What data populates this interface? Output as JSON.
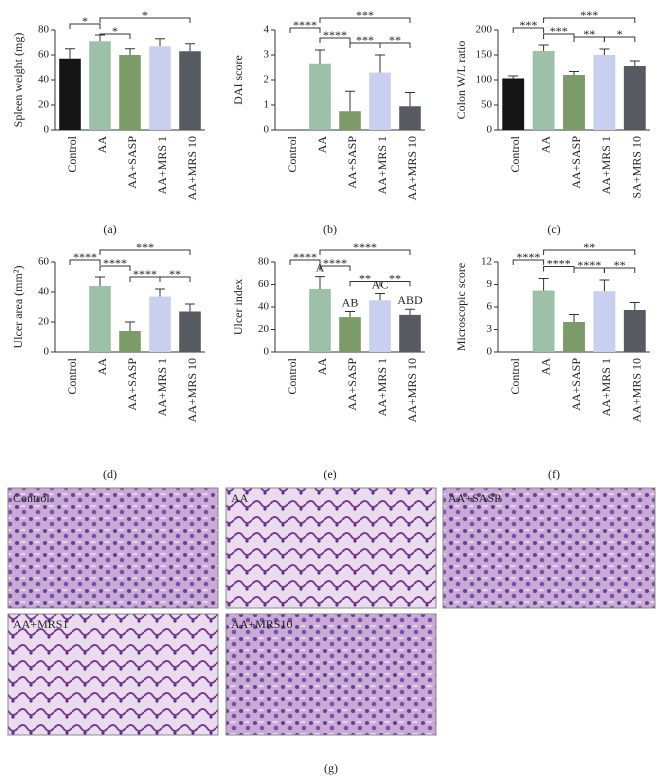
{
  "chart_data": [
    {
      "type": "bar",
      "y_label": "Spleen weight (mg)",
      "caption": "(a)",
      "categories": [
        "Control",
        "AA",
        "AA+SASP",
        "AA+MRS 1",
        "AA+MRS 10"
      ],
      "colors": [
        "#151515",
        "#9dc0a8",
        "#7b9b68",
        "#c9d0ef",
        "#575a60"
      ],
      "values": [
        57,
        71,
        60,
        67,
        63
      ],
      "errors": [
        8,
        5,
        5,
        6,
        6
      ],
      "ylim": [
        0,
        80
      ],
      "yticks": [
        0,
        20,
        40,
        60,
        80
      ],
      "brackets": [
        {
          "label": "*",
          "from": 0,
          "to": 1
        },
        {
          "label": "*",
          "from": 1,
          "to": 2
        },
        {
          "label": "*",
          "from": 1,
          "to": 4
        }
      ]
    },
    {
      "type": "bar",
      "y_label": "DAI score",
      "caption": "(b)",
      "categories": [
        "Control",
        "AA",
        "AA+SASP",
        "AA+MRS 1",
        "AA+MRS 10"
      ],
      "colors": [
        "#151515",
        "#9dc0a8",
        "#7b9b68",
        "#c9d0ef",
        "#575a60"
      ],
      "values": [
        0,
        2.65,
        0.75,
        2.3,
        0.95
      ],
      "errors": [
        0,
        0.55,
        0.8,
        0.7,
        0.55
      ],
      "ylim": [
        0,
        4
      ],
      "yticks": [
        0,
        1,
        2,
        3,
        4
      ],
      "brackets": [
        {
          "label": "****",
          "from": 0,
          "to": 1
        },
        {
          "label": "****",
          "from": 1,
          "to": 2
        },
        {
          "label": "***",
          "from": 1,
          "to": 4
        },
        {
          "label": "***",
          "from": 2,
          "to": 3
        },
        {
          "label": "**",
          "from": 3,
          "to": 4
        }
      ]
    },
    {
      "type": "bar",
      "y_label": "Colon W/L ratio",
      "caption": "(c)",
      "categories": [
        "Control",
        "AA",
        "AA+SASP",
        "AA+MRS 1",
        "SA+MRS 10"
      ],
      "colors": [
        "#151515",
        "#9dc0a8",
        "#7b9b68",
        "#c9d0ef",
        "#575a60"
      ],
      "values": [
        103,
        158,
        110,
        150,
        128
      ],
      "errors": [
        5,
        12,
        7,
        12,
        10
      ],
      "ylim": [
        0,
        200
      ],
      "yticks": [
        0,
        50,
        100,
        150,
        200
      ],
      "brackets": [
        {
          "label": "***",
          "from": 0,
          "to": 1
        },
        {
          "label": "***",
          "from": 1,
          "to": 2
        },
        {
          "label": "***",
          "from": 1,
          "to": 4
        },
        {
          "label": "**",
          "from": 2,
          "to": 3
        },
        {
          "label": "*",
          "from": 3,
          "to": 4
        }
      ]
    },
    {
      "type": "bar",
      "y_label": "Ulcer area (mm²)",
      "caption": "(d)",
      "categories": [
        "Control",
        "AA",
        "AA+SASP",
        "AA+MRS 1",
        "AA+MRS 10"
      ],
      "colors": [
        "#151515",
        "#9dc0a8",
        "#7b9b68",
        "#c9d0ef",
        "#575a60"
      ],
      "values": [
        0,
        44,
        14,
        37,
        27
      ],
      "errors": [
        0,
        6,
        6,
        5,
        5
      ],
      "ylim": [
        0,
        60
      ],
      "yticks": [
        0,
        20,
        40,
        60
      ],
      "brackets": [
        {
          "label": "****",
          "from": 0,
          "to": 1
        },
        {
          "label": "****",
          "from": 1,
          "to": 2
        },
        {
          "label": "***",
          "from": 1,
          "to": 4
        },
        {
          "label": "****",
          "from": 2,
          "to": 3
        },
        {
          "label": "**",
          "from": 3,
          "to": 4
        }
      ]
    },
    {
      "type": "bar",
      "y_label": "Ulcer index",
      "caption": "(e)",
      "categories": [
        "Control",
        "AA",
        "AA+SASP",
        "AA+MRS 1",
        "AA+MRS 10"
      ],
      "colors": [
        "#151515",
        "#9dc0a8",
        "#7b9b68",
        "#c9d0ef",
        "#575a60"
      ],
      "values": [
        0,
        56,
        31,
        46,
        33
      ],
      "errors": [
        0,
        11,
        5,
        6,
        5
      ],
      "letters": [
        null,
        "A",
        "AB",
        "AC",
        "ABD"
      ],
      "ylim": [
        0,
        80
      ],
      "yticks": [
        0,
        20,
        40,
        60,
        80
      ],
      "brackets": [
        {
          "label": "****",
          "from": 0,
          "to": 1
        },
        {
          "label": "****",
          "from": 1,
          "to": 2
        },
        {
          "label": "****",
          "from": 1,
          "to": 4
        },
        {
          "label": "**",
          "from": 2,
          "to": 3
        },
        {
          "label": "**",
          "from": 3,
          "to": 4
        }
      ]
    },
    {
      "type": "bar",
      "y_label": "Microscopic score",
      "caption": "(f)",
      "categories": [
        "Control",
        "AA",
        "AA+SASP",
        "AA+MRS 1",
        "AA+MRS 10"
      ],
      "colors": [
        "#151515",
        "#9dc0a8",
        "#7b9b68",
        "#c9d0ef",
        "#575a60"
      ],
      "values": [
        0,
        8.2,
        4,
        8.1,
        5.6
      ],
      "errors": [
        0,
        1.6,
        1,
        1.5,
        1
      ],
      "ylim": [
        0,
        12
      ],
      "yticks": [
        0,
        3,
        6,
        9,
        12
      ],
      "brackets": [
        {
          "label": "****",
          "from": 0,
          "to": 1
        },
        {
          "label": "****",
          "from": 1,
          "to": 2
        },
        {
          "label": "**",
          "from": 1,
          "to": 4
        },
        {
          "label": "****",
          "from": 2,
          "to": 3
        },
        {
          "label": "**",
          "from": 3,
          "to": 4
        }
      ]
    }
  ],
  "histology": {
    "labels": [
      "Control",
      "AA",
      "AA+SASP",
      "AA+MRS1",
      "AA+MRS10"
    ],
    "caption": "(g)"
  }
}
